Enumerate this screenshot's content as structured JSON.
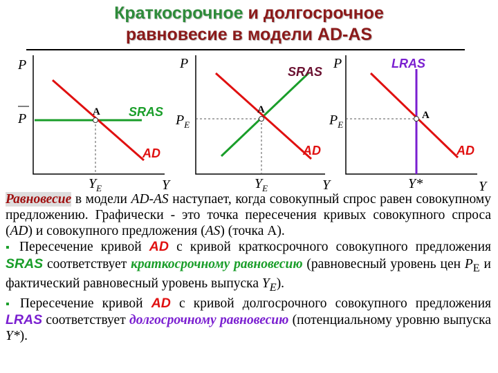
{
  "title": {
    "part1": "Краткосрочное",
    "part2": "и долгосрочное",
    "line2": "равновесие в модели AD-AS"
  },
  "graphs": [
    {
      "price_axis": "P",
      "quantity_axis": "Y",
      "price_level": "P",
      "output": "Y",
      "output_sub": "E",
      "point": "A",
      "supply": "SRAS",
      "demand": "AD"
    },
    {
      "price_axis": "P",
      "quantity_axis": "Y",
      "price_level": "P",
      "price_sub": "E",
      "output": "Y",
      "output_sub": "E",
      "point": "A",
      "supply": "SRAS",
      "demand": "AD"
    },
    {
      "price_axis": "P",
      "quantity_axis": "Y",
      "price_level": "P",
      "price_sub": "E",
      "output": "Y*",
      "point": "A",
      "supply": "LRAS",
      "demand": "AD"
    }
  ],
  "paragraphs": [
    {
      "segments": [
        "Равновесие",
        " в модели ",
        "AD-AS",
        " наступает, когда совокупный спрос равен совокупному предложению. Графически - это точка пересечения кривых совокупного спроса (",
        "AD",
        ") и совокупного предложения (",
        "AS",
        ") (точка А)."
      ]
    },
    {
      "segments": [
        "Пересечение кривой ",
        "AD",
        " с кривой краткосрочного совокупного предложения ",
        "SRAS",
        " соответствует ",
        "краткосрочному равновесию",
        " (равновесный уровень цен ",
        "P",
        "E",
        " и фактический равновесный уровень выпуска ",
        "Y",
        "E",
        ")."
      ]
    },
    {
      "segments": [
        "Пересечение кривой ",
        "AD",
        " с кривой долгосрочного совокупного предложения ",
        "LRAS",
        " соответствует ",
        "долгосрочному равновесию",
        " (потенциальному уровню выпуска ",
        "Y*",
        ")."
      ]
    }
  ]
}
